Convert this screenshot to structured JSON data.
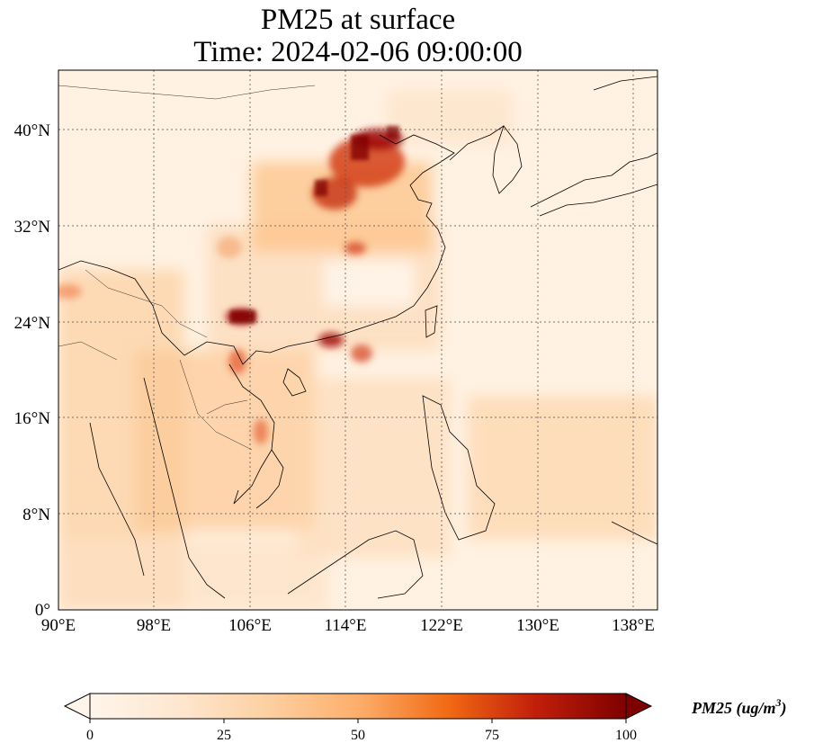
{
  "title": {
    "line1": "PM25 at surface",
    "line2": "Time: 2024-02-06 09:00:00"
  },
  "map": {
    "lon_range": [
      90,
      139
    ],
    "lat_range": [
      0,
      44
    ],
    "lon_ticks": [
      {
        "value": 90,
        "label": "90°E"
      },
      {
        "value": 98,
        "label": "98°E"
      },
      {
        "value": 106,
        "label": "106°E"
      },
      {
        "value": 114,
        "label": "114°E"
      },
      {
        "value": 122,
        "label": "122°E"
      },
      {
        "value": 130,
        "label": "130°E"
      },
      {
        "value": 138,
        "label": "138°E"
      }
    ],
    "lat_ticks": [
      {
        "value": 0,
        "label": "0°"
      },
      {
        "value": 8,
        "label": "8°N"
      },
      {
        "value": 16,
        "label": "16°N"
      },
      {
        "value": 24,
        "label": "24°N"
      },
      {
        "value": 32,
        "label": "32°N"
      },
      {
        "value": 40,
        "label": "40°N"
      }
    ],
    "gridlines": "dotted",
    "colormap": [
      "#fff5eb",
      "#fdd8b3",
      "#fdad6c",
      "#f4703b",
      "#d73213",
      "#9e0b0b",
      "#7f0000"
    ]
  },
  "colorbar": {
    "label": "PM25 (ug/m",
    "label_sup": "3",
    "label_close": ")",
    "min": 0,
    "max": 100,
    "ticks": [
      {
        "value": 0,
        "label": "0"
      },
      {
        "value": 25,
        "label": "25"
      },
      {
        "value": 50,
        "label": "50"
      },
      {
        "value": 75,
        "label": "75"
      },
      {
        "value": 100,
        "label": "100"
      }
    ],
    "extend": "both"
  }
}
